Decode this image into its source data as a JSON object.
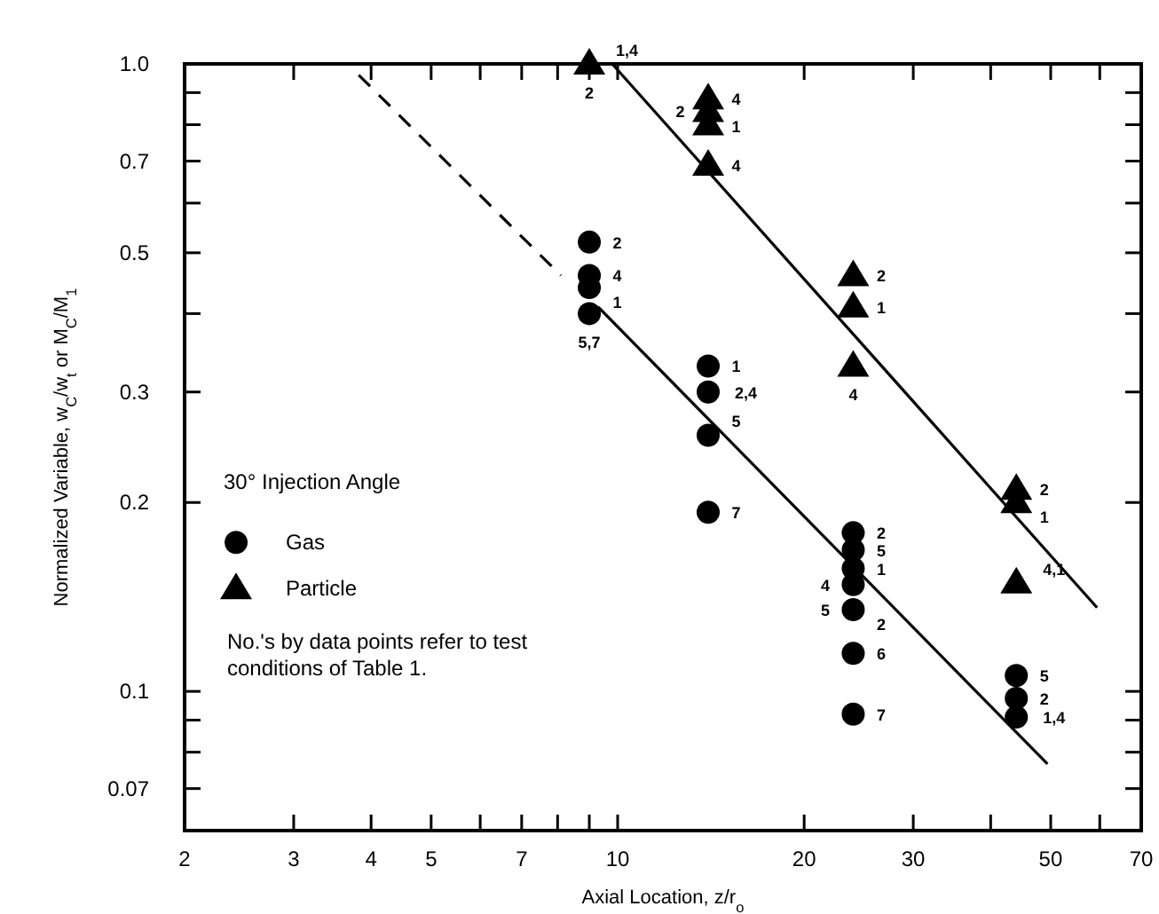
{
  "chart_data": {
    "type": "scatter",
    "xlabel": "Axial Location, z/r$_{o}$",
    "ylabel": "Normalized Variable, w$_{C}$/w$_{t}$  or  M$_{C}$/M$_{1}$",
    "legend_title": "30° Injection Angle",
    "log": "xy",
    "grid": false,
    "legend": "left",
    "xlim": [
      2,
      70
    ],
    "ylim": [
      0.06,
      1
    ],
    "xticks": [
      2,
      3,
      4,
      5,
      {
        "value": 6,
        "label": null
      },
      7,
      {
        "value": 8,
        "label": null
      },
      {
        "value": 9,
        "label": null
      },
      10,
      20,
      30,
      {
        "value": 40,
        "label": null
      },
      50,
      {
        "value": 60,
        "label": null
      },
      70
    ],
    "yticks": [
      {
        "value": 0.07,
        "label": "0.07"
      },
      {
        "value": 0.08,
        "label": null
      },
      {
        "value": 0.09,
        "label": null
      },
      {
        "value": 0.1,
        "label": "0.1"
      },
      {
        "value": 0.2,
        "label": "0.2"
      },
      {
        "value": 0.3,
        "label": "0.3"
      },
      {
        "value": 0.4,
        "label": null
      },
      {
        "value": 0.5,
        "label": "0.5"
      },
      {
        "value": 0.6,
        "label": null
      },
      {
        "value": 0.7,
        "label": "0.7"
      },
      {
        "value": 0.8,
        "label": null
      },
      {
        "value": 0.9,
        "label": null
      },
      {
        "value": 1,
        "label": "1.0"
      }
    ],
    "series": [
      {
        "name": "Gas",
        "marker": "circle",
        "color": "#000000",
        "x": [
          9,
          9,
          9,
          9,
          14,
          14,
          14,
          14,
          24,
          24,
          24,
          24,
          24,
          24,
          24,
          44,
          44,
          44
        ],
        "values": [
          0.52,
          0.46,
          0.44,
          0.4,
          0.33,
          0.3,
          0.256,
          0.193,
          0.179,
          0.168,
          0.157,
          0.148,
          0.135,
          0.115,
          0.092,
          0.106,
          0.0975,
          0.091
        ]
      },
      {
        "name": "Particle",
        "marker": "triangle",
        "color": "#000000",
        "x": [
          9,
          14,
          14,
          14,
          14,
          24,
          24,
          24,
          44,
          44,
          44
        ],
        "values": [
          1.0,
          0.88,
          0.84,
          0.8,
          0.69,
          0.46,
          0.41,
          0.33,
          0.21,
          0.2,
          0.149
        ]
      },
      {
        "type": "line",
        "marker": "none",
        "line_style": "solid",
        "color": "#000000",
        "x": [
          9.8,
          59.4
        ],
        "values": [
          1.0,
          0.136
        ]
      },
      {
        "type": "line",
        "marker": "none",
        "line_style": "solid",
        "color": "#000000",
        "x": [
          9.3,
          49.4
        ],
        "values": [
          0.41,
          0.0766
        ]
      },
      {
        "type": "line",
        "marker": "none",
        "line_style": "dashed",
        "color": "#000000",
        "x": [
          3.82,
          8.1
        ],
        "values": [
          0.96,
          0.46
        ]
      }
    ],
    "annotations": [
      "No.'s by data points refer to test conditions of Table 1.",
      {
        "text": "1,4",
        "x": 9,
        "y": 1.0
      },
      {
        "text": "2",
        "x": 9,
        "y": 1.0
      },
      {
        "text": "2",
        "x": 9,
        "y": 0.52
      },
      {
        "text": "4",
        "x": 9,
        "y": 0.46
      },
      {
        "text": "1",
        "x": 9,
        "y": 0.44
      },
      {
        "text": "5,7",
        "x": 9,
        "y": 0.4
      },
      {
        "text": "1",
        "x": 14,
        "y": 0.33
      },
      {
        "text": "2,4",
        "x": 14,
        "y": 0.3
      },
      {
        "text": "5",
        "x": 14,
        "y": 0.256
      },
      {
        "text": "7",
        "x": 14,
        "y": 0.193
      },
      {
        "text": "4",
        "x": 14,
        "y": 0.88
      },
      {
        "text": "1",
        "x": 14,
        "y": 0.84
      },
      {
        "text": "2",
        "x": 14,
        "y": 0.8
      },
      {
        "text": "4",
        "x": 14,
        "y": 0.69
      },
      {
        "text": "2",
        "x": 24,
        "y": 0.46
      },
      {
        "text": "1",
        "x": 24,
        "y": 0.41
      },
      {
        "text": "4",
        "x": 24,
        "y": 0.33
      },
      {
        "text": "2",
        "x": 24,
        "y": 0.179
      },
      {
        "text": "5",
        "x": 24,
        "y": 0.168
      },
      {
        "text": "1",
        "x": 24,
        "y": 0.157
      },
      {
        "text": "4",
        "x": 24,
        "y": 0.148
      },
      {
        "text": "2",
        "x": 24,
        "y": 0.135
      },
      {
        "text": "5",
        "x": 24,
        "y": 0.135
      },
      {
        "text": "6",
        "x": 24,
        "y": 0.115
      },
      {
        "text": "7",
        "x": 24,
        "y": 0.092
      },
      {
        "text": "2",
        "x": 44,
        "y": 0.21
      },
      {
        "text": "1",
        "x": 44,
        "y": 0.2
      },
      {
        "text": "4,1",
        "x": 44,
        "y": 0.149
      },
      {
        "text": "5",
        "x": 44,
        "y": 0.106
      },
      {
        "text": "2",
        "x": 44,
        "y": 0.0975
      },
      {
        "text": "1,4",
        "x": 44,
        "y": 0.091
      }
    ]
  }
}
